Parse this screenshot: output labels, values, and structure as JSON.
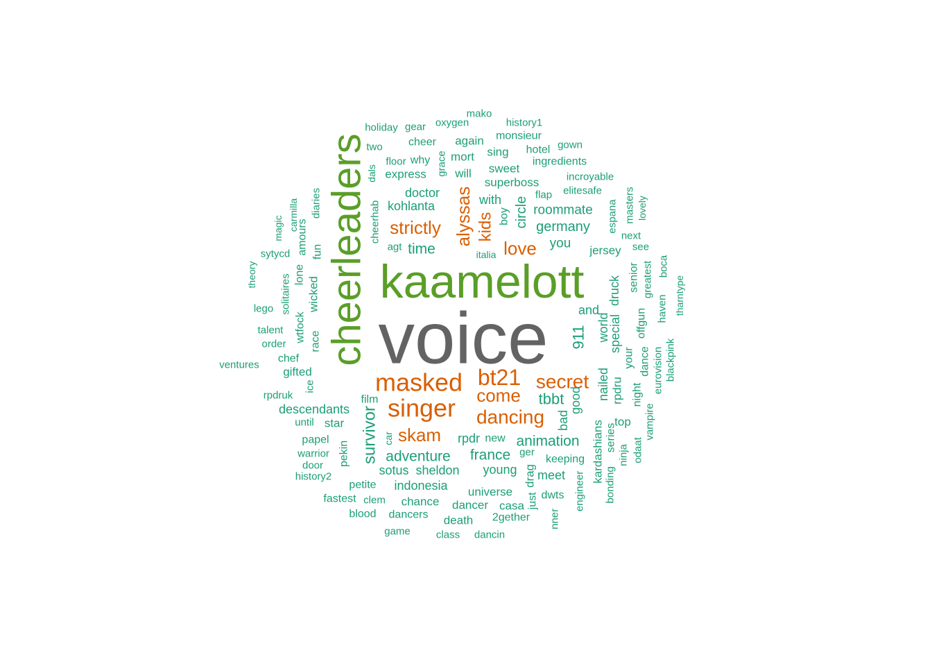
{
  "colors": {
    "gray": "#636363",
    "green": "#5a9e28",
    "orange": "#d95f02",
    "teal": "#1b9e77"
  },
  "words": [
    "voice",
    "kaamelott",
    "cheerleaders",
    "masked",
    "singer",
    "bt21",
    "secret",
    "dancing",
    "strictly",
    "alyssas",
    "kids",
    "love",
    "skam",
    "come",
    "survivor",
    "tbbt",
    "911",
    "adventure",
    "france",
    "animation",
    "time",
    "germany",
    "roommate",
    "circle",
    "with",
    "you",
    "doctor",
    "kohlanta",
    "express",
    "superboss",
    "sweet",
    "sing",
    "hotel",
    "ingredients",
    "incroyable",
    "elitesafe",
    "flap",
    "boy",
    "mort",
    "will",
    "again",
    "why",
    "cheer",
    "floor",
    "grace",
    "two",
    "holiday",
    "gear",
    "oxygen",
    "mako",
    "history1",
    "monsieur",
    "gown",
    "dals",
    "cheerhab",
    "agt",
    "and",
    "world",
    "special",
    "druck",
    "jersey",
    "nailed",
    "good",
    "bad",
    "rpdr",
    "new",
    "ger",
    "keeping",
    "meet",
    "drag",
    "just",
    "dwts",
    "young",
    "universe",
    "sotus",
    "sheldon",
    "indonesia",
    "chance",
    "dancer",
    "casa",
    "death",
    "2gether",
    "dancers",
    "clem",
    "blood",
    "fastest",
    "petite",
    "pekin",
    "car",
    "film",
    "star",
    "descendants",
    "until",
    "papel",
    "warrior",
    "door",
    "history2",
    "rpdruk",
    "gifted",
    "chef",
    "ice",
    "race",
    "ventures",
    "talent",
    "order",
    "lego",
    "solitaires",
    "theory",
    "sytycd",
    "magic",
    "amours",
    "carmilla",
    "lone",
    "wicked",
    "diaries",
    "fun",
    "wtfock",
    "espana",
    "masters",
    "lovely",
    "next",
    "see",
    "senior",
    "greatest",
    "boca",
    "tharntype",
    "haven",
    "offgun",
    "dance",
    "eurovision",
    "blackpink",
    "your",
    "night",
    "vampire",
    "top",
    "odaat",
    "ninja",
    "series",
    "kardashians",
    "bonding",
    "engineer",
    "rpdru",
    "italia",
    "nner",
    "game",
    "class",
    "dancin"
  ]
}
